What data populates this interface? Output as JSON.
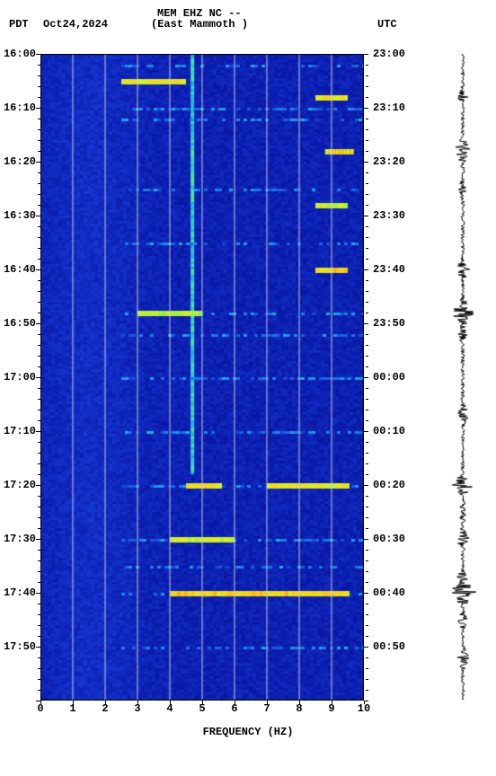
{
  "tz_left": "PDT",
  "tz_right": "UTC",
  "date": "Oct24,2024",
  "station_id": "MEM EHZ NC --",
  "station_name": "(East Mammoth )",
  "x_axis_label": "FREQUENCY (HZ)",
  "spectrogram": {
    "type": "spectrogram",
    "xlim": [
      0,
      10
    ],
    "xticks": [
      0,
      1,
      2,
      3,
      4,
      5,
      6,
      7,
      8,
      9,
      10
    ],
    "left_time_start_min": 960,
    "left_time_end_min": 1080,
    "right_time_start_min": 1380,
    "left_ticks": [
      "16:00",
      "16:10",
      "16:20",
      "16:30",
      "16:40",
      "16:50",
      "17:00",
      "17:10",
      "17:20",
      "17:30",
      "17:40",
      "17:50"
    ],
    "right_ticks": [
      "23:00",
      "23:10",
      "23:20",
      "23:30",
      "23:40",
      "23:50",
      "00:00",
      "00:10",
      "00:20",
      "00:30",
      "00:40",
      "00:50"
    ],
    "minor_tick_min": 2,
    "grid_color": "#c7c7e0",
    "background_color": "#0810a0",
    "colormap_stops": [
      "#04087a",
      "#0a1aa8",
      "#1535d0",
      "#1a6ee8",
      "#28a8e8",
      "#3de0c0",
      "#7af060",
      "#d8f028",
      "#fad018",
      "#f07010"
    ],
    "persistent_line_hz": 4.7,
    "bright_bands_time_min": [
      962,
      970,
      972,
      985,
      995,
      1008,
      1012,
      1020,
      1030,
      1040,
      1050,
      1055,
      1060,
      1070
    ],
    "bright_spots": [
      {
        "t": 965,
        "f_lo": 2.5,
        "f_hi": 4.5,
        "intensity": 0.8
      },
      {
        "t": 968,
        "f_lo": 8.5,
        "f_hi": 9.5,
        "intensity": 0.85
      },
      {
        "t": 978,
        "f_lo": 8.8,
        "f_hi": 9.6,
        "intensity": 0.9
      },
      {
        "t": 988,
        "f_lo": 8.5,
        "f_hi": 9.5,
        "intensity": 0.7
      },
      {
        "t": 1000,
        "f_lo": 8.5,
        "f_hi": 9.5,
        "intensity": 0.95
      },
      {
        "t": 1008,
        "f_lo": 3.0,
        "f_hi": 5.0,
        "intensity": 0.6
      },
      {
        "t": 1040,
        "f_lo": 4.5,
        "f_hi": 5.5,
        "intensity": 0.85
      },
      {
        "t": 1040,
        "f_lo": 7.0,
        "f_hi": 9.5,
        "intensity": 0.8
      },
      {
        "t": 1050,
        "f_lo": 4.0,
        "f_hi": 6.0,
        "intensity": 0.7
      },
      {
        "t": 1060,
        "f_lo": 4.0,
        "f_hi": 9.5,
        "intensity": 0.95
      },
      {
        "t": 1060,
        "f_lo": 8.5,
        "f_hi": 9.5,
        "intensity": 1.0
      }
    ]
  },
  "waveform": {
    "color": "#000000",
    "baseline_amp": 2,
    "events": [
      {
        "t": 968,
        "amp": 6
      },
      {
        "t": 978,
        "amp": 10
      },
      {
        "t": 985,
        "amp": 5
      },
      {
        "t": 1000,
        "amp": 8
      },
      {
        "t": 1008,
        "amp": 14
      },
      {
        "t": 1012,
        "amp": 6
      },
      {
        "t": 1027,
        "amp": 8
      },
      {
        "t": 1040,
        "amp": 12
      },
      {
        "t": 1045,
        "amp": 6
      },
      {
        "t": 1050,
        "amp": 8
      },
      {
        "t": 1058,
        "amp": 10
      },
      {
        "t": 1060,
        "amp": 16
      },
      {
        "t": 1065,
        "amp": 6
      },
      {
        "t": 1072,
        "amp": 8
      }
    ]
  }
}
